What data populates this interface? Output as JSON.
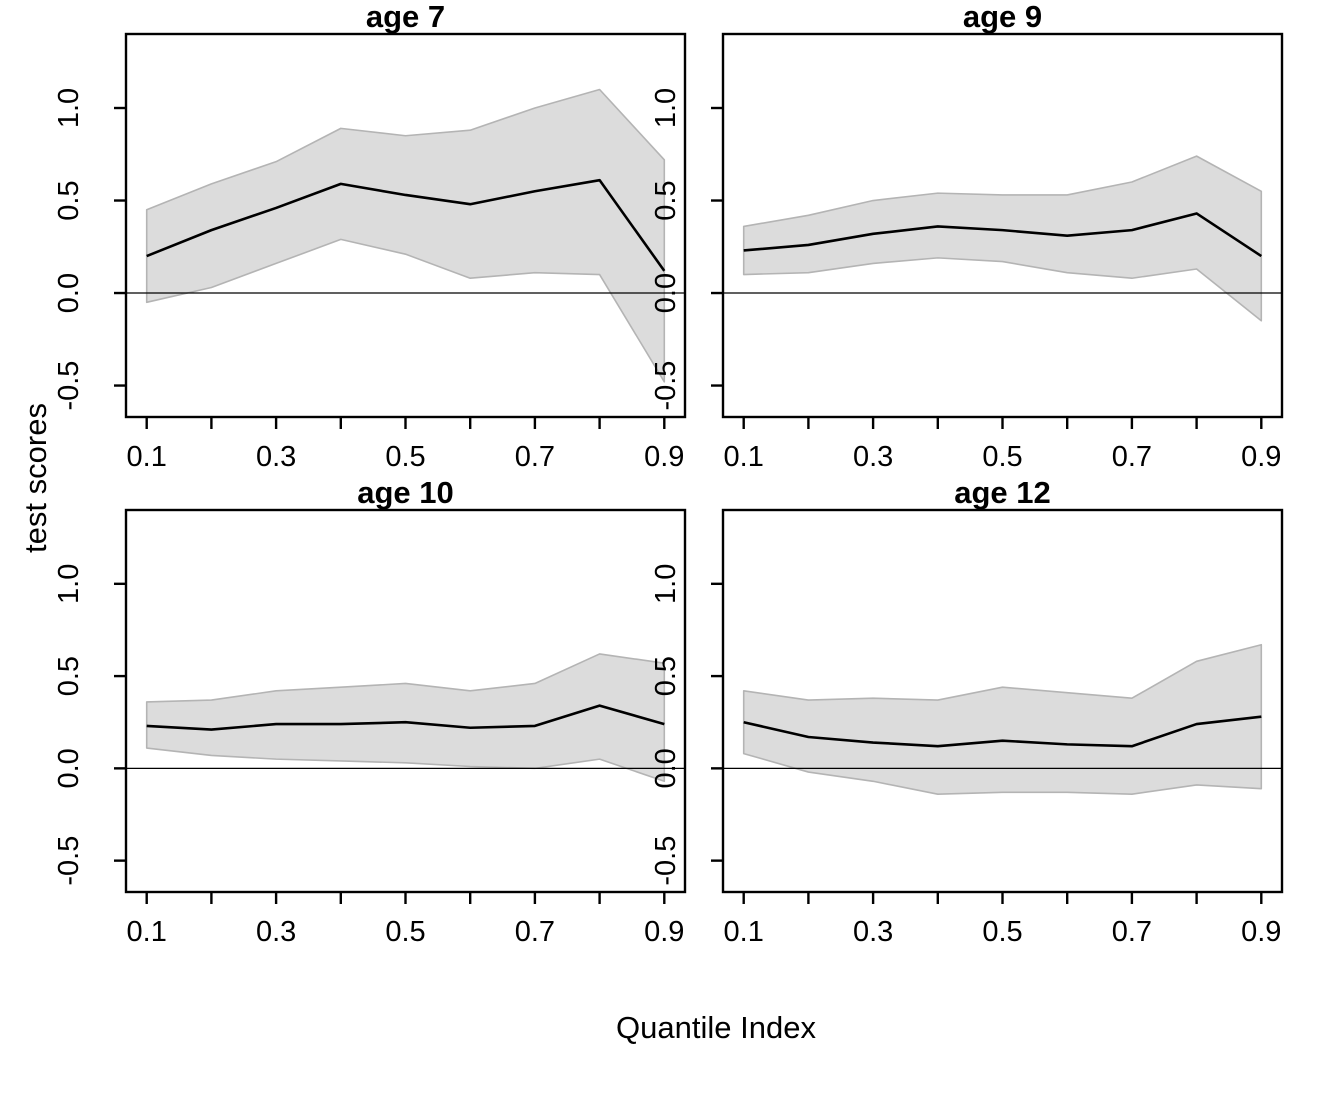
{
  "figure": {
    "background": "#ffffff",
    "outer_ylabel": "test scores",
    "outer_xlabel": "Quantile Index",
    "xtick_labels": [
      "0.1",
      "0.3",
      "0.5",
      "0.7",
      "0.9"
    ],
    "ytick_labels": [
      "-0.5",
      "0.0",
      "0.5",
      "1.0"
    ],
    "colors": {
      "band_fill": "#dcdcdc",
      "band_stroke": "#b4b4b4",
      "line": "#000000",
      "axis": "#000000",
      "zero_line": "#000000"
    }
  },
  "chart_data": [
    {
      "type": "line",
      "title": "age 7",
      "x": [
        0.1,
        0.2,
        0.3,
        0.4,
        0.5,
        0.6,
        0.7,
        0.8,
        0.9
      ],
      "series": [
        {
          "name": "estimate",
          "values": [
            0.2,
            0.34,
            0.46,
            0.59,
            0.53,
            0.48,
            0.55,
            0.61,
            0.12
          ]
        },
        {
          "name": "upper_ci",
          "values": [
            0.45,
            0.59,
            0.71,
            0.89,
            0.85,
            0.88,
            1.0,
            1.1,
            0.72
          ]
        },
        {
          "name": "lower_ci",
          "values": [
            -0.05,
            0.03,
            0.16,
            0.29,
            0.21,
            0.08,
            0.11,
            0.1,
            -0.48
          ]
        }
      ],
      "band_between": [
        "lower_ci",
        "upper_ci"
      ],
      "reference_line_y": 0,
      "xlim": [
        0.068,
        0.932
      ],
      "ylim": [
        -0.67,
        1.4
      ],
      "xticks": [
        0.1,
        0.2,
        0.3,
        0.4,
        0.5,
        0.6,
        0.7,
        0.8,
        0.9
      ],
      "xticks_labeled": [
        0.1,
        0.3,
        0.5,
        0.7,
        0.9
      ],
      "yticks": [
        -0.5,
        0.0,
        0.5,
        1.0
      ],
      "grid": false,
      "legend": "none"
    },
    {
      "type": "line",
      "title": "age 9",
      "x": [
        0.1,
        0.2,
        0.3,
        0.4,
        0.5,
        0.6,
        0.7,
        0.8,
        0.9
      ],
      "series": [
        {
          "name": "estimate",
          "values": [
            0.23,
            0.26,
            0.32,
            0.36,
            0.34,
            0.31,
            0.34,
            0.43,
            0.2
          ]
        },
        {
          "name": "upper_ci",
          "values": [
            0.36,
            0.42,
            0.5,
            0.54,
            0.53,
            0.53,
            0.6,
            0.74,
            0.55
          ]
        },
        {
          "name": "lower_ci",
          "values": [
            0.1,
            0.11,
            0.16,
            0.19,
            0.17,
            0.11,
            0.08,
            0.13,
            -0.15
          ]
        }
      ],
      "band_between": [
        "lower_ci",
        "upper_ci"
      ],
      "reference_line_y": 0,
      "xlim": [
        0.068,
        0.932
      ],
      "ylim": [
        -0.67,
        1.4
      ],
      "xticks": [
        0.1,
        0.2,
        0.3,
        0.4,
        0.5,
        0.6,
        0.7,
        0.8,
        0.9
      ],
      "xticks_labeled": [
        0.1,
        0.3,
        0.5,
        0.7,
        0.9
      ],
      "yticks": [
        -0.5,
        0.0,
        0.5,
        1.0
      ],
      "grid": false,
      "legend": "none"
    },
    {
      "type": "line",
      "title": "age 10",
      "x": [
        0.1,
        0.2,
        0.3,
        0.4,
        0.5,
        0.6,
        0.7,
        0.8,
        0.9
      ],
      "series": [
        {
          "name": "estimate",
          "values": [
            0.23,
            0.21,
            0.24,
            0.24,
            0.25,
            0.22,
            0.23,
            0.34,
            0.24
          ]
        },
        {
          "name": "upper_ci",
          "values": [
            0.36,
            0.37,
            0.42,
            0.44,
            0.46,
            0.42,
            0.46,
            0.62,
            0.57
          ]
        },
        {
          "name": "lower_ci",
          "values": [
            0.11,
            0.07,
            0.05,
            0.04,
            0.03,
            0.01,
            0.0,
            0.05,
            -0.07
          ]
        }
      ],
      "band_between": [
        "lower_ci",
        "upper_ci"
      ],
      "reference_line_y": 0,
      "xlim": [
        0.068,
        0.932
      ],
      "ylim": [
        -0.67,
        1.4
      ],
      "xticks": [
        0.1,
        0.2,
        0.3,
        0.4,
        0.5,
        0.6,
        0.7,
        0.8,
        0.9
      ],
      "xticks_labeled": [
        0.1,
        0.3,
        0.5,
        0.7,
        0.9
      ],
      "yticks": [
        -0.5,
        0.0,
        0.5,
        1.0
      ],
      "grid": false,
      "legend": "none"
    },
    {
      "type": "line",
      "title": "age 12",
      "x": [
        0.1,
        0.2,
        0.3,
        0.4,
        0.5,
        0.6,
        0.7,
        0.8,
        0.9
      ],
      "series": [
        {
          "name": "estimate",
          "values": [
            0.25,
            0.17,
            0.14,
            0.12,
            0.15,
            0.13,
            0.12,
            0.24,
            0.28
          ]
        },
        {
          "name": "upper_ci",
          "values": [
            0.42,
            0.37,
            0.38,
            0.37,
            0.44,
            0.41,
            0.38,
            0.58,
            0.67
          ]
        },
        {
          "name": "lower_ci",
          "values": [
            0.08,
            -0.02,
            -0.07,
            -0.14,
            -0.13,
            -0.13,
            -0.14,
            -0.09,
            -0.11
          ]
        }
      ],
      "band_between": [
        "lower_ci",
        "upper_ci"
      ],
      "reference_line_y": 0,
      "xlim": [
        0.068,
        0.932
      ],
      "ylim": [
        -0.67,
        1.4
      ],
      "xticks": [
        0.1,
        0.2,
        0.3,
        0.4,
        0.5,
        0.6,
        0.7,
        0.8,
        0.9
      ],
      "xticks_labeled": [
        0.1,
        0.3,
        0.5,
        0.7,
        0.9
      ],
      "yticks": [
        -0.5,
        0.0,
        0.5,
        1.0
      ],
      "grid": false,
      "legend": "none"
    }
  ]
}
